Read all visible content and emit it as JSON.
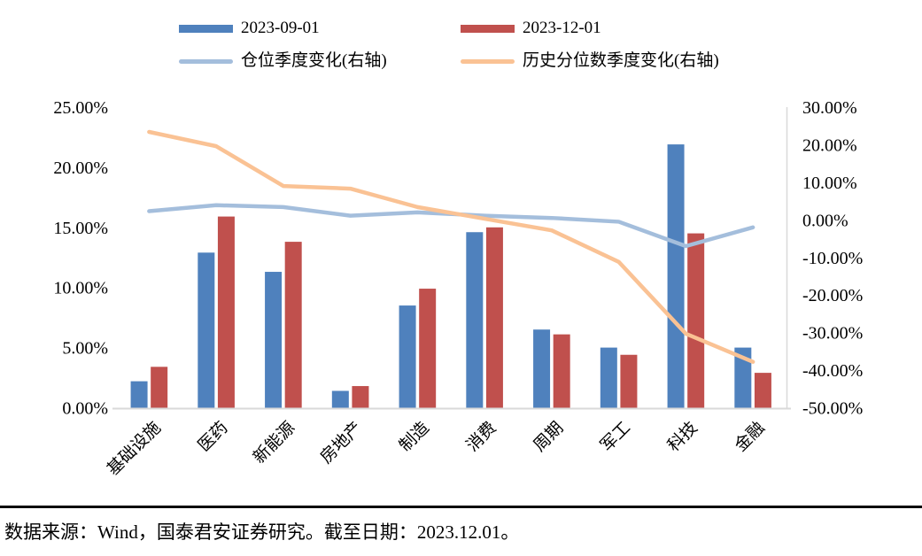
{
  "legend": {
    "items": [
      {
        "label": "2023-09-01",
        "swatch": "bar",
        "color": "#4F81BD"
      },
      {
        "label": "2023-12-01",
        "swatch": "bar",
        "color": "#C0504D"
      },
      {
        "label": "仓位季度变化(右轴)",
        "swatch": "line",
        "color": "#A4BEDC"
      },
      {
        "label": "历史分位数季度变化(右轴)",
        "swatch": "line",
        "color": "#FAC294"
      }
    ]
  },
  "chart_data": {
    "type": "combo-bar-line-dual-axis",
    "categories": [
      "基础设施",
      "医药",
      "新能源",
      "房地产",
      "制造",
      "消费",
      "周期",
      "军工",
      "科技",
      "金融"
    ],
    "bar_series": [
      {
        "name": "2023-09-01",
        "axis": "left",
        "color": "#4F81BD",
        "values": [
          2.2,
          12.9,
          11.3,
          1.4,
          8.5,
          14.6,
          6.5,
          5.0,
          21.9,
          5.0
        ]
      },
      {
        "name": "2023-12-01",
        "axis": "left",
        "color": "#C0504D",
        "values": [
          3.4,
          15.9,
          13.8,
          1.8,
          9.9,
          15.0,
          6.1,
          4.4,
          14.5,
          2.9
        ]
      }
    ],
    "line_series": [
      {
        "name": "仓位季度变化(右轴)",
        "axis": "right",
        "color": "#A4BEDC",
        "values": [
          2.3,
          3.9,
          3.4,
          1.1,
          2.0,
          1.1,
          0.5,
          -0.5,
          -7.0,
          -2.0
        ]
      },
      {
        "name": "历史分位数季度变化(右轴)",
        "axis": "right",
        "color": "#FAC294",
        "values": [
          23.4,
          19.6,
          9.0,
          8.3,
          3.4,
          0.3,
          -2.8,
          -11.2,
          -30.3,
          -37.8
        ]
      }
    ],
    "left_axis": {
      "min": 0,
      "max": 25,
      "step": 5,
      "labels": [
        "0.00%",
        "5.00%",
        "10.00%",
        "15.00%",
        "20.00%",
        "25.00%"
      ]
    },
    "right_axis": {
      "min": -50,
      "max": 30,
      "step": 10,
      "labels": [
        "-50.00%",
        "-40.00%",
        "-30.00%",
        "-20.00%",
        "-10.00%",
        "0.00%",
        "10.00%",
        "20.00%",
        "30.00%"
      ]
    },
    "grid": false,
    "legend_position": "top"
  },
  "footer": {
    "source_text": "数据来源：Wind，国泰君安证券研究。截至日期：2023.12.01。"
  }
}
